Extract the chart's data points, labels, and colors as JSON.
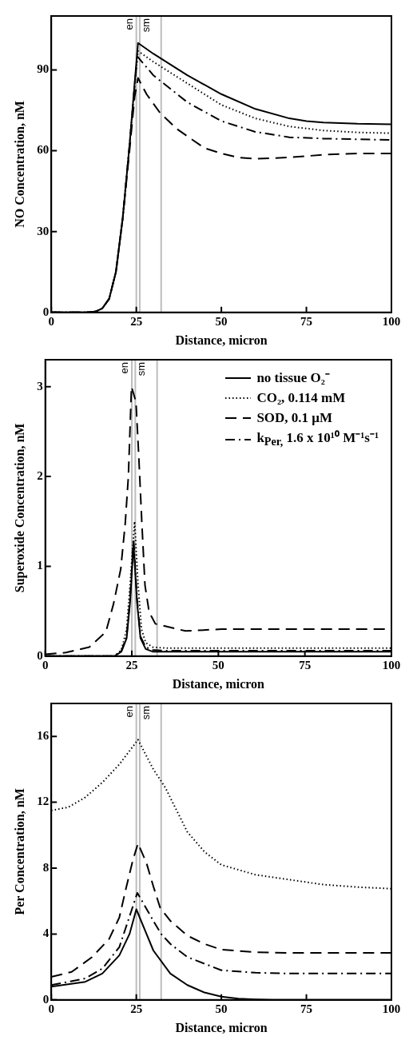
{
  "chart_data": [
    {
      "type": "line",
      "xlabel": "Distance, micron",
      "ylabel": "NO Concentration, nM",
      "xlim": [
        0,
        100
      ],
      "xticks": [
        0,
        25,
        50,
        75,
        100
      ],
      "ylim": [
        0,
        110
      ],
      "yticks": [
        0,
        30,
        60,
        90
      ],
      "grid": false,
      "legend": false,
      "ref_lines": [
        {
          "axis": "x",
          "value": 25,
          "color": "#bdbdbd",
          "label": "en"
        },
        {
          "axis": "x",
          "value": 26,
          "color": "#bdbdbd",
          "label": "sm"
        },
        {
          "axis": "x",
          "value": 32.3,
          "color": "#bdbdbd"
        }
      ],
      "series": [
        {
          "color": "#000000",
          "line_style": "solid",
          "x": [
            0,
            10,
            13,
            15,
            17,
            19,
            21,
            23,
            24.5,
            25.5,
            30,
            35,
            40,
            50,
            60,
            70,
            75,
            80,
            90,
            100
          ],
          "values": [
            0,
            0,
            0.3,
            1.5,
            5,
            15,
            35,
            62,
            85,
            100,
            96,
            92,
            88,
            81,
            75.5,
            72,
            71,
            70.5,
            70,
            69.8
          ]
        },
        {
          "color": "#000000",
          "line_style": "dotted",
          "x": [
            0,
            10,
            13,
            15,
            17,
            19,
            21,
            23,
            24.5,
            25.5,
            30,
            40,
            50,
            60,
            70,
            80,
            90,
            100
          ],
          "values": [
            0,
            0,
            0.3,
            1.5,
            5,
            15,
            35,
            62,
            84,
            97,
            93,
            85,
            77,
            72,
            69,
            67.5,
            66.8,
            66.5
          ]
        },
        {
          "color": "#000000",
          "line_style": "dashed",
          "x": [
            0,
            10,
            13,
            15,
            17,
            19,
            21,
            23,
            24.5,
            25.5,
            28,
            32,
            37,
            45,
            50,
            55,
            60,
            70,
            80,
            90,
            100
          ],
          "values": [
            0,
            0,
            0.3,
            1.5,
            5,
            15,
            35,
            60,
            80,
            87,
            81,
            74,
            68,
            61,
            59,
            57.5,
            57,
            57.5,
            58.5,
            59,
            59
          ]
        },
        {
          "color": "#000000",
          "line_style": "dashdot",
          "x": [
            0,
            10,
            13,
            15,
            17,
            19,
            21,
            23,
            24.5,
            25.3,
            30,
            35,
            40,
            50,
            60,
            70,
            80,
            100
          ],
          "values": [
            0,
            0,
            0.3,
            1.5,
            5,
            15,
            35,
            62,
            84,
            95,
            88,
            83,
            78,
            71,
            67,
            65,
            64.5,
            64
          ]
        }
      ]
    },
    {
      "type": "line",
      "xlabel": "Distance, micron",
      "ylabel": "Superoxide Concentration, nM",
      "xlim": [
        0,
        100
      ],
      "xticks": [
        0,
        25,
        50,
        75,
        100
      ],
      "ylim": [
        0,
        3.3
      ],
      "yticks": [
        0,
        1,
        2,
        3
      ],
      "grid": false,
      "legend": "top right",
      "ref_lines": [
        {
          "axis": "x",
          "value": 25,
          "color": "#bdbdbd",
          "label": "en"
        },
        {
          "axis": "x",
          "value": 26,
          "color": "#bdbdbd",
          "label": "sm"
        },
        {
          "axis": "x",
          "value": 32.3,
          "color": "#bdbdbd"
        }
      ],
      "series": [
        {
          "name": "no tissue O₂⁻",
          "color": "#000000",
          "line_style": "solid",
          "x": [
            0,
            20,
            22,
            23.5,
            24.5,
            25.5,
            26.5,
            27.5,
            29,
            31,
            35,
            100
          ],
          "values": [
            0,
            0,
            0.05,
            0.2,
            0.6,
            1.25,
            0.6,
            0.2,
            0.08,
            0.05,
            0.05,
            0.05
          ]
        },
        {
          "name": "CO₂, 0.114 mM",
          "color": "#000000",
          "line_style": "dotted",
          "x": [
            0,
            20,
            22,
            23.5,
            24.5,
            25.8,
            26.8,
            27.8,
            29,
            31,
            35,
            100
          ],
          "values": [
            0,
            0,
            0.07,
            0.3,
            0.8,
            1.5,
            0.8,
            0.3,
            0.15,
            0.1,
            0.09,
            0.09
          ]
        },
        {
          "name": "SOD, 0.1 μM",
          "color": "#000000",
          "line_style": "dashed",
          "x": [
            0,
            6,
            12.7,
            17.5,
            19.7,
            21.8,
            23.1,
            24,
            24.9,
            26.2,
            27,
            27.9,
            28.8,
            30,
            31.8,
            40.5,
            50.9,
            100
          ],
          "values": [
            0.02,
            0.04,
            0.1,
            0.27,
            0.58,
            0.97,
            1.48,
            2,
            3,
            2.83,
            2.23,
            1.48,
            0.79,
            0.49,
            0.36,
            0.28,
            0.3,
            0.3
          ]
        },
        {
          "name": "k$_{Per,}$ 1.6 x 10¹⁰ M⁻¹s⁻¹",
          "color": "#000000",
          "line_style": "dashdot",
          "x": [
            0,
            20,
            22,
            23.5,
            24.5,
            25.5,
            26.5,
            27.5,
            29,
            31,
            35,
            100
          ],
          "values": [
            0,
            0,
            0.06,
            0.22,
            0.65,
            1.3,
            0.65,
            0.22,
            0.1,
            0.07,
            0.06,
            0.06
          ]
        }
      ]
    },
    {
      "type": "line",
      "xlabel": "Distance, micron",
      "ylabel": "Per Concentration, nM",
      "xlim": [
        0,
        100
      ],
      "xticks": [
        0,
        25,
        50,
        75,
        100
      ],
      "ylim": [
        0,
        18
      ],
      "yticks": [
        0,
        4,
        8,
        12,
        16
      ],
      "grid": false,
      "legend": false,
      "ref_lines": [
        {
          "axis": "x",
          "value": 25,
          "color": "#bdbdbd",
          "label": "en"
        },
        {
          "axis": "x",
          "value": 26,
          "color": "#bdbdbd",
          "label": "sm"
        },
        {
          "axis": "x",
          "value": 32.3,
          "color": "#bdbdbd"
        }
      ],
      "series": [
        {
          "color": "#000000",
          "line_style": "solid",
          "x": [
            0,
            10,
            15,
            20,
            23,
            25,
            28,
            30,
            35,
            40,
            45,
            50,
            55,
            60,
            65,
            100
          ],
          "values": [
            0.8,
            1.1,
            1.6,
            2.7,
            4,
            5.5,
            4,
            3,
            1.6,
            0.9,
            0.45,
            0.2,
            0.08,
            0.03,
            0,
            0
          ]
        },
        {
          "color": "#000000",
          "line_style": "dotted",
          "x": [
            0,
            5,
            10,
            15,
            20,
            25.5,
            30,
            33.5,
            40,
            45,
            50,
            60,
            70,
            80,
            90,
            100
          ],
          "values": [
            11.5,
            11.7,
            12.3,
            13.2,
            14.3,
            15.8,
            14,
            12.9,
            10.2,
            9,
            8.2,
            7.6,
            7.3,
            7,
            6.85,
            6.75
          ]
        },
        {
          "color": "#000000",
          "line_style": "dashed",
          "x": [
            0,
            6,
            12,
            17,
            20,
            22,
            24,
            25.5,
            28,
            30,
            32,
            35,
            40,
            45,
            50,
            60,
            70,
            100
          ],
          "values": [
            1.4,
            1.7,
            2.6,
            3.7,
            5,
            6.8,
            8.5,
            9.5,
            8.3,
            6.9,
            5.6,
            4.8,
            3.9,
            3.4,
            3.05,
            2.9,
            2.85,
            2.85
          ]
        },
        {
          "color": "#000000",
          "line_style": "dashdot",
          "x": [
            0,
            10,
            15,
            20,
            25.3,
            30,
            32.3,
            35,
            40,
            45,
            50,
            60,
            70,
            100
          ],
          "values": [
            0.9,
            1.3,
            1.9,
            3.2,
            6.5,
            4.8,
            4,
            3.4,
            2.6,
            2.2,
            1.8,
            1.65,
            1.6,
            1.6
          ]
        }
      ]
    }
  ]
}
